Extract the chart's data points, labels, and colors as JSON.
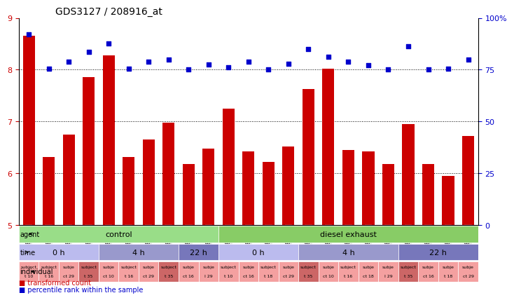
{
  "title": "GDS3127 / 208916_at",
  "samples": [
    "GSM180605",
    "GSM180610",
    "GSM180619",
    "GSM180622",
    "GSM180606",
    "GSM180611",
    "GSM180620",
    "GSM180623",
    "GSM180612",
    "GSM180621",
    "GSM180603",
    "GSM180607",
    "GSM180613",
    "GSM180616",
    "GSM180624",
    "GSM180604",
    "GSM180608",
    "GSM180614",
    "GSM180617",
    "GSM180625",
    "GSM180609",
    "GSM180615",
    "GSM180618"
  ],
  "bar_values": [
    8.65,
    6.32,
    6.75,
    7.85,
    8.27,
    6.32,
    6.65,
    6.98,
    6.18,
    6.48,
    7.25,
    6.42,
    6.22,
    6.52,
    7.62,
    8.02,
    6.45,
    6.42,
    6.18,
    6.95,
    6.18,
    5.95,
    6.72
  ],
  "dot_values": [
    8.68,
    8.02,
    8.15,
    8.35,
    8.5,
    8.02,
    8.15,
    8.2,
    8.0,
    8.1,
    8.05,
    8.15,
    8.0,
    8.12,
    8.4,
    8.25,
    8.15,
    8.08,
    8.0,
    8.45,
    8.0,
    8.02,
    8.2
  ],
  "ylim": [
    5,
    9
  ],
  "yticks": [
    5,
    6,
    7,
    8,
    9
  ],
  "bar_color": "#cc0000",
  "dot_color": "#0000cc",
  "bg_color": "#ffffff",
  "tick_bg": "#cccccc",
  "agent_groups": [
    {
      "label": "control",
      "start": 0,
      "end": 10,
      "color": "#99dd88"
    },
    {
      "label": "diesel exhaust",
      "start": 10,
      "end": 23,
      "color": "#88cc66"
    }
  ],
  "time_groups": [
    {
      "label": "0 h",
      "start": 0,
      "end": 4,
      "color": "#bbbbee"
    },
    {
      "label": "4 h",
      "start": 4,
      "end": 8,
      "color": "#9999cc"
    },
    {
      "label": "22 h",
      "start": 8,
      "end": 10,
      "color": "#7777bb"
    },
    {
      "label": "0 h",
      "start": 10,
      "end": 14,
      "color": "#bbbbee"
    },
    {
      "label": "4 h",
      "start": 14,
      "end": 19,
      "color": "#9999cc"
    },
    {
      "label": "22 h",
      "start": 19,
      "end": 23,
      "color": "#7777bb"
    }
  ],
  "individual_labels": [
    "subject\nt 10",
    "subject\nt 16",
    "subje\nct 29",
    "subject\nt 35",
    "subje\nct 10",
    "subject\nt 16",
    "subje\nct 29",
    "subject\nt 35",
    "subje\nct 16",
    "subje\nl 29",
    "subject\nt 10",
    "subje\nct 16",
    "subject\nt 18",
    "subje\nct 29",
    "subject\nt 35",
    "subje\nct 10",
    "subject\nt 16",
    "subje\nct 18",
    "subje\nl 29",
    "subject\nt 35",
    "subje\nct 16",
    "subje\nt 18",
    "subje\nct 29"
  ],
  "individual_colors": [
    "#f4a0a0",
    "#f4a0a0",
    "#f4a0a0",
    "#cc6666",
    "#f4a0a0",
    "#f4a0a0",
    "#f4a0a0",
    "#cc6666",
    "#f4a0a0",
    "#f4a0a0",
    "#f4a0a0",
    "#f4a0a0",
    "#f4a0a0",
    "#f4a0a0",
    "#cc6666",
    "#f4a0a0",
    "#f4a0a0",
    "#f4a0a0",
    "#f4a0a0",
    "#cc6666",
    "#f4a0a0",
    "#f4a0a0",
    "#f4a0a0"
  ],
  "right_yticks": [
    0,
    25,
    50,
    75,
    100
  ],
  "right_ylabels": [
    "0",
    "25",
    "50",
    "75",
    "100%"
  ]
}
